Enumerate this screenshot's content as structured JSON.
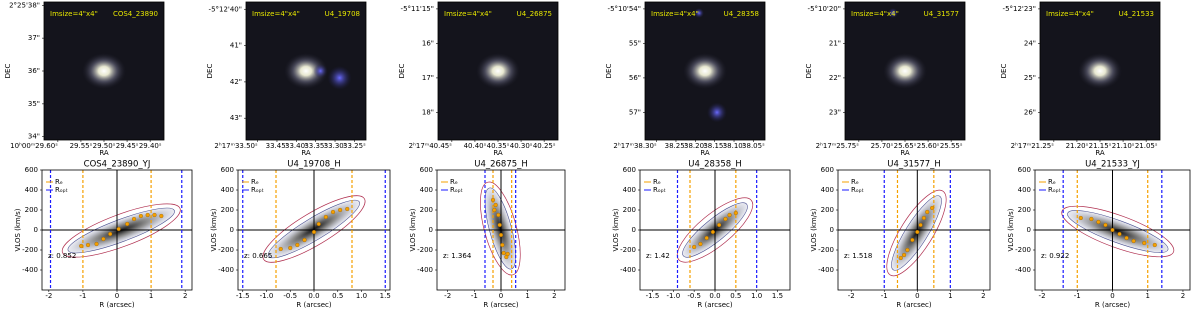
{
  "chart_data": [
    {
      "type": "image",
      "annotation": "Imsize=4\"x4\"",
      "label": "COS4_23890",
      "xlabel": "RA",
      "ylabel": "DEC",
      "xlim": [
        29.63,
        29.37
      ],
      "xticks": [
        {
          "value": 29.6,
          "label": "10ʰ00ᵐ29.60ˢ"
        },
        {
          "value": 29.55,
          "label": "29.55ˢ"
        },
        {
          "value": 29.5,
          "label": "29.50ˢ"
        },
        {
          "value": 29.45,
          "label": "29.45ˢ"
        },
        {
          "value": 29.4,
          "label": "29.40ˢ"
        }
      ],
      "ylim": [
        33.9,
        38.1
      ],
      "yticks": [
        {
          "value": 38,
          "label": "2°25'38\""
        },
        {
          "value": 37,
          "label": "37\""
        },
        {
          "value": 36,
          "label": "36\""
        },
        {
          "value": 35,
          "label": "35\""
        },
        {
          "value": 34,
          "label": "34\""
        }
      ]
    },
    {
      "type": "image",
      "annotation": "Imsize=4\"x4\"",
      "label": "U4_19708",
      "xlabel": "RA",
      "ylabel": "DEC",
      "xlim": [
        33.53,
        33.22
      ],
      "xticks": [
        {
          "value": 33.5,
          "label": "2ʰ17ᵐ33.50ˢ"
        },
        {
          "value": 33.45,
          "label": "33.45ˢ"
        },
        {
          "value": 33.4,
          "label": "33.40ˢ"
        },
        {
          "value": 33.35,
          "label": "33.35ˢ"
        },
        {
          "value": 33.3,
          "label": "33.30ˢ"
        },
        {
          "value": 33.25,
          "label": "33.25ˢ"
        }
      ],
      "ylim": [
        43.6,
        39.8
      ],
      "yticks": [
        {
          "value": 40,
          "label": "-5°12'40\""
        },
        {
          "value": 41,
          "label": "41\""
        },
        {
          "value": 42,
          "label": "42\""
        },
        {
          "value": 43,
          "label": "43\""
        }
      ]
    },
    {
      "type": "image",
      "annotation": "Imsize=4\"x4\"",
      "label": "U4_26875",
      "xlabel": "RA",
      "ylabel": "DEC",
      "xlim": [
        40.48,
        40.22
      ],
      "xticks": [
        {
          "value": 40.45,
          "label": "2ʰ17ᵐ40.45ˢ"
        },
        {
          "value": 40.4,
          "label": "40.40ˢ"
        },
        {
          "value": 40.35,
          "label": "40.35ˢ"
        },
        {
          "value": 40.3,
          "label": "40.30ˢ"
        },
        {
          "value": 40.25,
          "label": "40.25ˢ"
        }
      ],
      "ylim": [
        18.8,
        14.8
      ],
      "yticks": [
        {
          "value": 15,
          "label": "-5°11'15\""
        },
        {
          "value": 16,
          "label": "16\""
        },
        {
          "value": 17,
          "label": "17\""
        },
        {
          "value": 18,
          "label": "18\""
        }
      ]
    },
    {
      "type": "image",
      "annotation": "Imsize=4\"x4\"",
      "label": "U4_28358",
      "xlabel": "RA",
      "ylabel": "DEC",
      "xlim": [
        38.33,
        38.02
      ],
      "xticks": [
        {
          "value": 38.3,
          "label": "2ʰ17ᵐ38.30ˢ"
        },
        {
          "value": 38.25,
          "label": "38.25ˢ"
        },
        {
          "value": 38.2,
          "label": "38.20ˢ"
        },
        {
          "value": 38.15,
          "label": "38.15ˢ"
        },
        {
          "value": 38.1,
          "label": "38.10ˢ"
        },
        {
          "value": 38.05,
          "label": "38.05ˢ"
        }
      ],
      "ylim": [
        57.8,
        53.8
      ],
      "yticks": [
        {
          "value": 54,
          "label": "-5°10'54\""
        },
        {
          "value": 55,
          "label": "55\""
        },
        {
          "value": 56,
          "label": "56\""
        },
        {
          "value": 57,
          "label": "57\""
        }
      ]
    },
    {
      "type": "image",
      "annotation": "Imsize=4\"x4\"",
      "label": "U4_31577",
      "xlabel": "RA",
      "ylabel": "DEC",
      "xlim": [
        25.78,
        25.52
      ],
      "xticks": [
        {
          "value": 25.75,
          "label": "2ʰ17ᵐ25.75ˢ"
        },
        {
          "value": 25.7,
          "label": "25.70ˢ"
        },
        {
          "value": 25.65,
          "label": "25.65ˢ"
        },
        {
          "value": 25.6,
          "label": "25.60ˢ"
        },
        {
          "value": 25.55,
          "label": "25.55ˢ"
        }
      ],
      "ylim": [
        23.8,
        19.8
      ],
      "yticks": [
        {
          "value": 20,
          "label": "-5°10'20\""
        },
        {
          "value": 21,
          "label": "21\""
        },
        {
          "value": 22,
          "label": "22\""
        },
        {
          "value": 23,
          "label": "23\""
        }
      ]
    },
    {
      "type": "image",
      "annotation": "Imsize=4\"x4\"",
      "label": "U4_21533",
      "xlabel": "RA",
      "ylabel": "DEC",
      "xlim": [
        21.28,
        21.02
      ],
      "xticks": [
        {
          "value": 21.25,
          "label": "2ʰ17ᵐ21.25ˢ"
        },
        {
          "value": 21.2,
          "label": "21.20ˢ"
        },
        {
          "value": 21.15,
          "label": "21.15ˢ"
        },
        {
          "value": 21.1,
          "label": "21.10ˢ"
        },
        {
          "value": 21.05,
          "label": "21.05ˢ"
        }
      ],
      "ylim": [
        26.8,
        22.8
      ],
      "yticks": [
        {
          "value": 23,
          "label": "-5°12'23\""
        },
        {
          "value": 24,
          "label": "24\""
        },
        {
          "value": 25,
          "label": "25\""
        },
        {
          "value": 26,
          "label": "26\""
        }
      ]
    },
    {
      "type": "pv",
      "title": "COS4_23890_YJ",
      "xlabel": "R (arcsec)",
      "ylabel": "VLOS (km/s)",
      "annotation": "z: 0.852",
      "xlim": [
        -2.2,
        2.2
      ],
      "xticks": [
        -2,
        -1,
        0,
        1,
        2
      ],
      "ylim": [
        -600,
        600
      ],
      "yticks": [
        -400,
        -200,
        0,
        200,
        400,
        600
      ],
      "vlines": [
        {
          "name": "Rₑ",
          "color": "#f5a000",
          "x": [
            -1.0,
            1.0
          ]
        },
        {
          "name": "Rₒₚₜ",
          "color": "#1a1aff",
          "x": [
            -1.95,
            1.9
          ]
        }
      ],
      "points": {
        "color": "#f5a000",
        "x": [
          -1.05,
          -0.85,
          -0.6,
          -0.4,
          -0.2,
          0.05,
          0.3,
          0.5,
          0.7,
          0.9,
          1.1,
          1.3
        ],
        "y": [
          -160,
          -150,
          -140,
          -90,
          -40,
          10,
          60,
          110,
          140,
          150,
          150,
          140
        ]
      }
    },
    {
      "type": "pv",
      "title": "U4_19708_H",
      "xlabel": "R (arcsec)",
      "ylabel": "VLOS (km/s)",
      "annotation": "z: 0.665",
      "xlim": [
        -1.6,
        1.6
      ],
      "xticks": [
        {
          "value": -1.5,
          "label": "-1.5"
        },
        {
          "value": -1,
          "label": "-1.0"
        },
        {
          "value": -0.5,
          "label": "-0.5"
        },
        {
          "value": 0,
          "label": "0.0"
        },
        {
          "value": 0.5,
          "label": "0.5"
        },
        {
          "value": 1,
          "label": "1.0"
        },
        {
          "value": 1.5,
          "label": "1.5"
        }
      ],
      "ylim": [
        -600,
        600
      ],
      "yticks": [
        -400,
        -200,
        0,
        200,
        400,
        600
      ],
      "vlines": [
        {
          "name": "Rₑ",
          "color": "#f5a000",
          "x": [
            -0.8,
            0.8
          ]
        },
        {
          "name": "Rₒₚₜ",
          "color": "#1a1aff",
          "x": [
            -1.5,
            1.5
          ]
        }
      ],
      "points": {
        "color": "#f5a000",
        "x": [
          -0.7,
          -0.5,
          -0.35,
          -0.2,
          0,
          0.1,
          0.25,
          0.4,
          0.55,
          0.7
        ],
        "y": [
          -190,
          -180,
          -150,
          -100,
          -20,
          60,
          130,
          180,
          200,
          210
        ]
      }
    },
    {
      "type": "pv",
      "title": "U4_26875_H",
      "xlabel": "R (arcsec)",
      "ylabel": "VLOS (km/s)",
      "annotation": "z: 1.364",
      "xlim": [
        -2.4,
        2.4
      ],
      "xticks": [
        -2,
        -1,
        0,
        1,
        2
      ],
      "ylim": [
        -600,
        600
      ],
      "yticks": [
        -400,
        -200,
        0,
        200,
        400,
        600
      ],
      "vlines": [
        {
          "name": "Rₑ",
          "color": "#f5a000",
          "x": [
            -0.3,
            0.4
          ]
        },
        {
          "name": "Rₒₚₜ",
          "color": "#1a1aff",
          "x": [
            -0.6,
            0.55
          ]
        }
      ],
      "points": {
        "color": "#f5a000",
        "x": [
          -0.3,
          -0.25,
          -0.2,
          -0.1,
          -0.05,
          0,
          0.05,
          0.1,
          0.2,
          0.25
        ],
        "y": [
          300,
          200,
          250,
          150,
          50,
          -50,
          -150,
          -230,
          -270,
          -240
        ]
      }
    },
    {
      "type": "pv",
      "title": "U4_28358_H",
      "xlabel": "R (arcsec)",
      "ylabel": "VLOS (km/s)",
      "annotation": "z: 1.42",
      "xlim": [
        -1.8,
        1.8
      ],
      "xticks": [
        {
          "value": -1.5,
          "label": "-1.5"
        },
        {
          "value": -1,
          "label": "-1.0"
        },
        {
          "value": -0.5,
          "label": "-0.5"
        },
        {
          "value": 0,
          "label": "0.0"
        },
        {
          "value": 0.5,
          "label": "0.5"
        },
        {
          "value": 1,
          "label": "1.0"
        },
        {
          "value": 1.5,
          "label": "1.5"
        }
      ],
      "ylim": [
        -600,
        600
      ],
      "yticks": [
        -400,
        -200,
        0,
        200,
        400,
        600
      ],
      "vlines": [
        {
          "name": "Rₑ",
          "color": "#f5a000",
          "x": [
            -0.6,
            0.5
          ]
        },
        {
          "name": "Rₒₚₜ",
          "color": "#1a1aff",
          "x": [
            -0.9,
            1.0
          ]
        }
      ],
      "points": {
        "color": "#f5a000",
        "x": [
          -0.5,
          -0.35,
          -0.2,
          -0.05,
          0.1,
          0.25,
          0.35,
          0.5
        ],
        "y": [
          -170,
          -140,
          -80,
          -20,
          50,
          110,
          150,
          170
        ]
      }
    },
    {
      "type": "pv",
      "title": "U4_31577_H",
      "xlabel": "R (arcsec)",
      "ylabel": "VLOS (km/s)",
      "annotation": "z: 1.518",
      "xlim": [
        -2.4,
        2.2
      ],
      "xticks": [
        -2,
        -1,
        0,
        1,
        2
      ],
      "ylim": [
        -600,
        600
      ],
      "yticks": [
        -400,
        -200,
        0,
        200,
        400,
        600
      ],
      "vlines": [
        {
          "name": "Rₑ",
          "color": "#f5a000",
          "x": [
            -0.6,
            0.5
          ]
        },
        {
          "name": "Rₒₚₜ",
          "color": "#1a1aff",
          "x": [
            -1.0,
            1.0
          ]
        }
      ],
      "points": {
        "color": "#f5a000",
        "x": [
          -0.5,
          -0.4,
          -0.3,
          -0.15,
          0,
          0.1,
          0.2,
          0.3,
          0.45
        ],
        "y": [
          -280,
          -250,
          -200,
          -100,
          -20,
          50,
          120,
          180,
          220
        ]
      }
    },
    {
      "type": "pv",
      "title": "U4_21533_YJ",
      "xlabel": "R (arcsec)",
      "ylabel": "VLOS (km/s)",
      "annotation": "z: 0.922",
      "xlim": [
        -2.2,
        2.2
      ],
      "xticks": [
        -2,
        -1,
        0,
        1,
        2
      ],
      "ylim": [
        -600,
        600
      ],
      "yticks": [
        -400,
        -200,
        0,
        200,
        400,
        600
      ],
      "vlines": [
        {
          "name": "Rₑ",
          "color": "#f5a000",
          "x": [
            -1.0,
            1.0
          ]
        },
        {
          "name": "Rₒₚₜ",
          "color": "#1a1aff",
          "x": [
            -1.4,
            1.4
          ]
        }
      ],
      "points": {
        "color": "#f5a000",
        "x": [
          -0.9,
          -0.6,
          -0.4,
          -0.2,
          0,
          0.2,
          0.4,
          0.6,
          0.9,
          1.2
        ],
        "y": [
          120,
          110,
          80,
          50,
          0,
          -40,
          -80,
          -110,
          -130,
          -150
        ]
      }
    }
  ]
}
